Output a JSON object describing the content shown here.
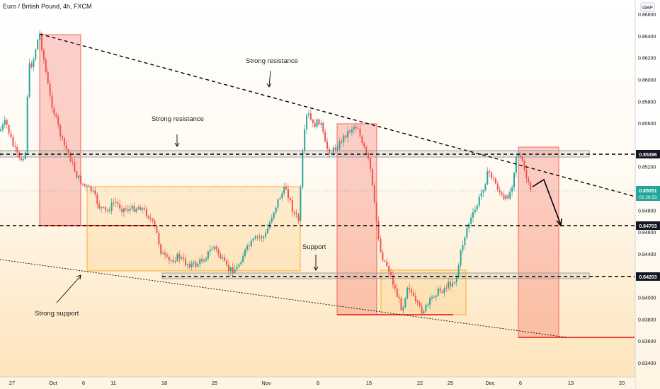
{
  "header": {
    "title": "Euro / British Pound, 4h, FXCM",
    "currency": "GBP"
  },
  "chart_data": {
    "type": "candlestick",
    "symbol": "EURGBP",
    "timeframe": "4h",
    "source": "FXCM",
    "ylim": [
      0.8327,
      0.8673
    ],
    "y_ticks": [
      "0.86600",
      "0.86400",
      "0.86200",
      "0.86000",
      "0.85800",
      "0.85600",
      "0.85200",
      "0.84800",
      "0.84600",
      "0.84400",
      "0.84000",
      "0.83800",
      "0.83600",
      "0.83400"
    ],
    "x_ticks": [
      "27",
      "Oct",
      "6",
      "11",
      "18",
      "25",
      "Nov",
      "8",
      "15",
      "22",
      "25",
      "Dec",
      "6",
      "13",
      "20"
    ],
    "current_price": {
      "value": "0.85051",
      "countdown": "01:26:53",
      "color": "#26a69a"
    },
    "levels": [
      {
        "label": "0.85396",
        "value": 0.85396
      },
      {
        "label": "0.84703",
        "value": 0.84703
      },
      {
        "label": "0.84203",
        "value": 0.84203
      }
    ],
    "annotations": {
      "resistance_mid": "Strong resistance",
      "resistance_top": "Strong resistance",
      "support": "Support",
      "strong_support": "Strong support"
    },
    "colors": {
      "up": "#26a69a",
      "down": "#ef5350",
      "red_box": "#f44336",
      "orange_box": "#ff9800",
      "line": "#000000"
    }
  }
}
